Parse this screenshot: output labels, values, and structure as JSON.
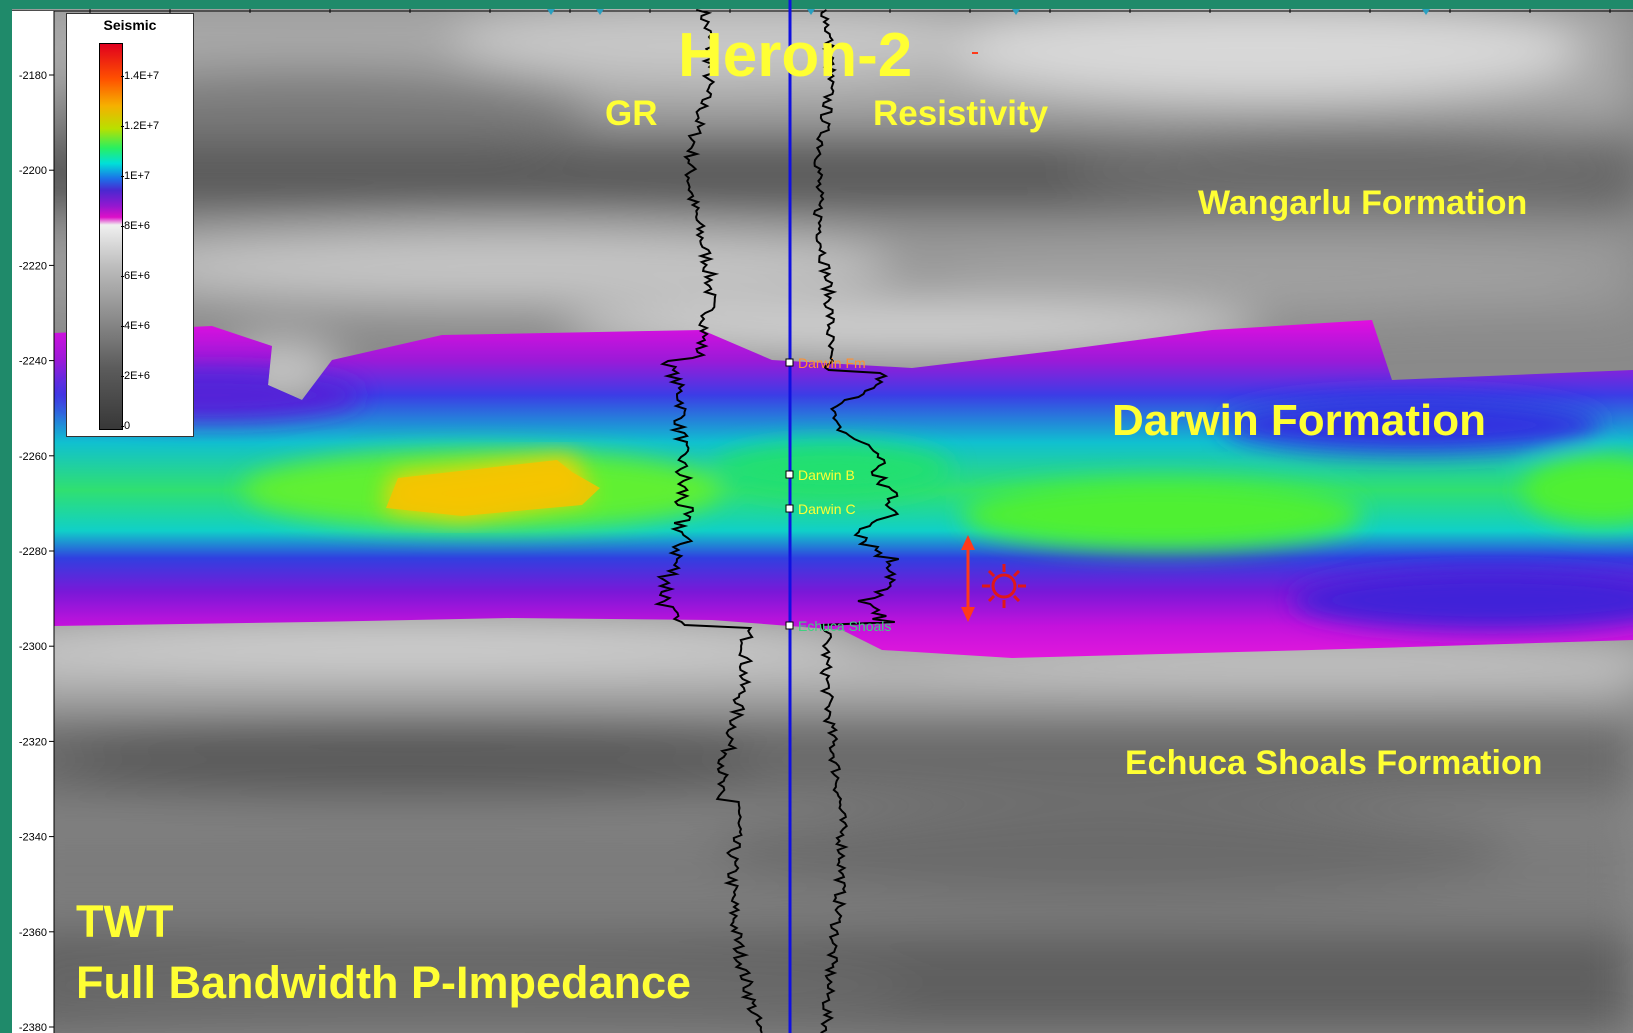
{
  "title": "Heron-2",
  "logs": {
    "left": "GR",
    "right": "Resistivity"
  },
  "formations": {
    "top": "Wangarlu Formation",
    "middle": "Darwin Formation",
    "bottom": "Echuca Shoals Formation"
  },
  "footer": {
    "line1": "TWT",
    "line2": "Full Bandwidth P-Impedance"
  },
  "legend": {
    "title": "Seismic",
    "ticks": [
      "1.4E+7",
      "1.2E+7",
      "1E+7",
      "8E+6",
      "6E+6",
      "4E+6",
      "2E+6",
      "0"
    ]
  },
  "depth_axis": {
    "labels": [
      "-2180",
      "-2200",
      "-2220",
      "-2240",
      "-2260",
      "-2280",
      "-2300",
      "-2320",
      "-2340",
      "-2360",
      "-2380"
    ]
  },
  "markers": [
    "Darwin Fm",
    "Darwin B",
    "Darwin C",
    "Echuca Shoals"
  ],
  "colors": {
    "label": "#ffff33",
    "well_track": "#1010e0",
    "annotation": "#e02020"
  },
  "icons": {
    "target": "sun-target-icon",
    "interval": "double-arrow-icon"
  }
}
